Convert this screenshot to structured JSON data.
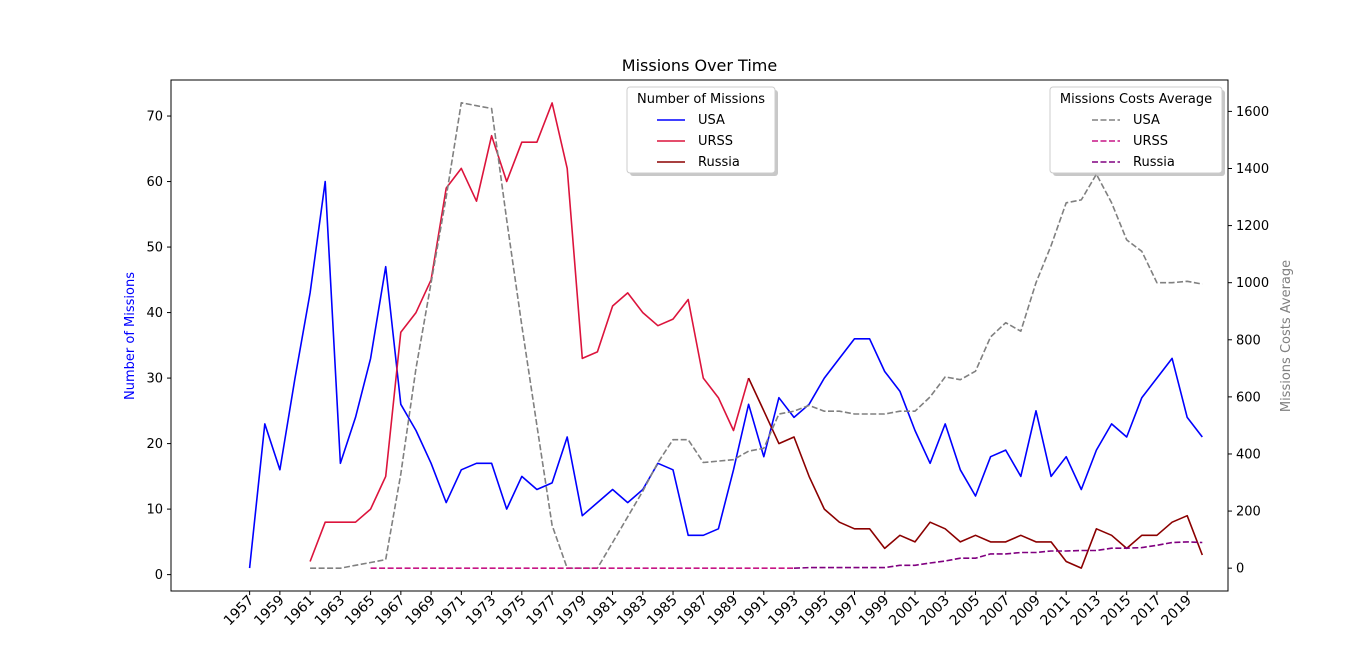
{
  "chart_data": {
    "type": "line",
    "title": "Missions Over Time",
    "xlabel": "",
    "ylabel": "Number of Missions",
    "ylabel_right": "Missions Costs Average",
    "xlim": [
      1951.8,
      2021.7
    ],
    "ylim": [
      -2.5,
      75.5
    ],
    "ylim_right": [
      -80,
      1710
    ],
    "x_ticks": [
      1957,
      1959,
      1961,
      1963,
      1965,
      1967,
      1969,
      1971,
      1973,
      1975,
      1977,
      1979,
      1981,
      1983,
      1985,
      1987,
      1989,
      1991,
      1993,
      1995,
      1997,
      1999,
      2001,
      2003,
      2005,
      2007,
      2009,
      2011,
      2013,
      2015,
      2017,
      2019
    ],
    "y_ticks": [
      0,
      10,
      20,
      30,
      40,
      50,
      60,
      70
    ],
    "y_ticks_right": [
      0,
      200,
      400,
      600,
      800,
      1000,
      1200,
      1400,
      1600
    ],
    "grid": false,
    "legends": [
      {
        "title": "Number of Missions",
        "placement": "top-center",
        "entries": [
          "USA",
          "URSS",
          "Russia"
        ]
      },
      {
        "title": "Missions Costs Average",
        "placement": "top-right",
        "entries": [
          "USA",
          "URSS",
          "Russia"
        ]
      }
    ],
    "series": [
      {
        "name": "USA",
        "axis": "left",
        "style": "solid",
        "color": "#0000ff",
        "x": [
          1957,
          1958,
          1959,
          1960,
          1961,
          1962,
          1963,
          1964,
          1965,
          1966,
          1967,
          1968,
          1969,
          1970,
          1971,
          1972,
          1973,
          1974,
          1975,
          1976,
          1977,
          1978,
          1979,
          1980,
          1981,
          1982,
          1983,
          1984,
          1985,
          1986,
          1987,
          1988,
          1989,
          1990,
          1991,
          1992,
          1993,
          1994,
          1995,
          1996,
          1997,
          1998,
          1999,
          2000,
          2001,
          2002,
          2003,
          2004,
          2005,
          2006,
          2007,
          2008,
          2009,
          2010,
          2011,
          2012,
          2013,
          2014,
          2015,
          2016,
          2017,
          2018,
          2019,
          2020
        ],
        "values": [
          1,
          23,
          16,
          30,
          43,
          60,
          17,
          24,
          33,
          47,
          26,
          22,
          17,
          11,
          16,
          17,
          17,
          10,
          15,
          13,
          14,
          21,
          9,
          11,
          13,
          11,
          13,
          17,
          16,
          6,
          6,
          7,
          16,
          26,
          18,
          27,
          24,
          26,
          30,
          33,
          36,
          36,
          31,
          28,
          22,
          17,
          23,
          16,
          12,
          18,
          19,
          15,
          25,
          15,
          18,
          13,
          19,
          23,
          21,
          27,
          30,
          33,
          24,
          21
        ]
      },
      {
        "name": "URSS",
        "axis": "left",
        "style": "solid",
        "color": "#dc143c",
        "x": [
          1961,
          1962,
          1963,
          1964,
          1965,
          1966,
          1967,
          1968,
          1969,
          1970,
          1971,
          1972,
          1973,
          1974,
          1975,
          1976,
          1977,
          1978,
          1979,
          1980,
          1981,
          1982,
          1983,
          1984,
          1985,
          1986,
          1987,
          1988,
          1989,
          1990
        ],
        "values": [
          2,
          8,
          8,
          8,
          10,
          15,
          37,
          40,
          45,
          59,
          62,
          57,
          67,
          60,
          66,
          66,
          72,
          62,
          33,
          34,
          41,
          43,
          40,
          38,
          39,
          42,
          30,
          27,
          22,
          30
        ]
      },
      {
        "name": "Russia",
        "axis": "left",
        "style": "solid",
        "color": "#8b0000",
        "x": [
          1990,
          1991,
          1992,
          1993,
          1994,
          1995,
          1996,
          1997,
          1998,
          1999,
          2000,
          2001,
          2002,
          2003,
          2004,
          2005,
          2006,
          2007,
          2008,
          2009,
          2010,
          2011,
          2012,
          2013,
          2014,
          2015,
          2016,
          2017,
          2018,
          2019,
          2020
        ],
        "values": [
          30,
          25,
          20,
          21,
          15,
          10,
          8,
          7,
          7,
          4,
          6,
          5,
          8,
          7,
          5,
          6,
          5,
          5,
          6,
          5,
          5,
          2,
          1,
          7,
          6,
          4,
          6,
          6,
          8,
          9,
          3
        ]
      },
      {
        "name": "USA",
        "axis": "right",
        "style": "dashed",
        "color": "#808080",
        "x": [
          1961,
          1962,
          1963,
          1964,
          1965,
          1966,
          1967,
          1968,
          1969,
          1970,
          1971,
          1972,
          1973,
          1974,
          1975,
          1976,
          1977,
          1978,
          1979,
          1980,
          1981,
          1982,
          1983,
          1984,
          1985,
          1986,
          1987,
          1988,
          1989,
          1990,
          1991,
          1992,
          1993,
          1994,
          1995,
          1996,
          1997,
          1998,
          1999,
          2000,
          2001,
          2002,
          2003,
          2004,
          2005,
          2006,
          2007,
          2008,
          2009,
          2010,
          2011,
          2012,
          2013,
          2014,
          2015,
          2016,
          2017,
          2018,
          2019,
          2020
        ],
        "values": [
          0,
          0,
          0,
          10,
          20,
          30,
          330,
          700,
          1000,
          1300,
          1630,
          1620,
          1610,
          1220,
          850,
          500,
          150,
          0,
          0,
          0,
          90,
          180,
          270,
          370,
          450,
          450,
          370,
          375,
          380,
          410,
          420,
          540,
          550,
          570,
          550,
          550,
          540,
          540,
          540,
          550,
          550,
          600,
          670,
          660,
          690,
          810,
          860,
          830,
          1000,
          1130,
          1280,
          1290,
          1380,
          1280,
          1150,
          1110,
          1000,
          1000,
          1005,
          995
        ]
      },
      {
        "name": "URSS",
        "axis": "right",
        "style": "dashed",
        "color": "#c71585",
        "x": [
          1965,
          1966,
          1967,
          1968,
          1969,
          1970,
          1971,
          1972,
          1973,
          1974,
          1975,
          1976,
          1977,
          1978,
          1979,
          1980,
          1981,
          1982,
          1983,
          1984,
          1985,
          1986,
          1987,
          1988,
          1989,
          1990,
          1991,
          1992,
          1993
        ],
        "values": [
          0,
          0,
          0,
          0,
          0,
          0,
          0,
          0,
          0,
          0,
          0,
          0,
          0,
          0,
          0,
          0,
          0,
          0,
          0,
          0,
          0,
          0,
          0,
          0,
          0,
          0,
          0,
          0,
          0
        ]
      },
      {
        "name": "Russia",
        "axis": "right",
        "style": "dashed",
        "color": "#800080",
        "x": [
          1993,
          1994,
          1995,
          1996,
          1997,
          1998,
          1999,
          2000,
          2001,
          2002,
          2003,
          2004,
          2005,
          2006,
          2007,
          2008,
          2009,
          2010,
          2011,
          2012,
          2013,
          2014,
          2015,
          2016,
          2017,
          2018,
          2019,
          2020
        ],
        "values": [
          0,
          2,
          2,
          2,
          2,
          2,
          2,
          10,
          10,
          18,
          25,
          35,
          35,
          50,
          50,
          55,
          55,
          60,
          60,
          62,
          62,
          70,
          70,
          72,
          80,
          90,
          92,
          90
        ]
      }
    ]
  }
}
